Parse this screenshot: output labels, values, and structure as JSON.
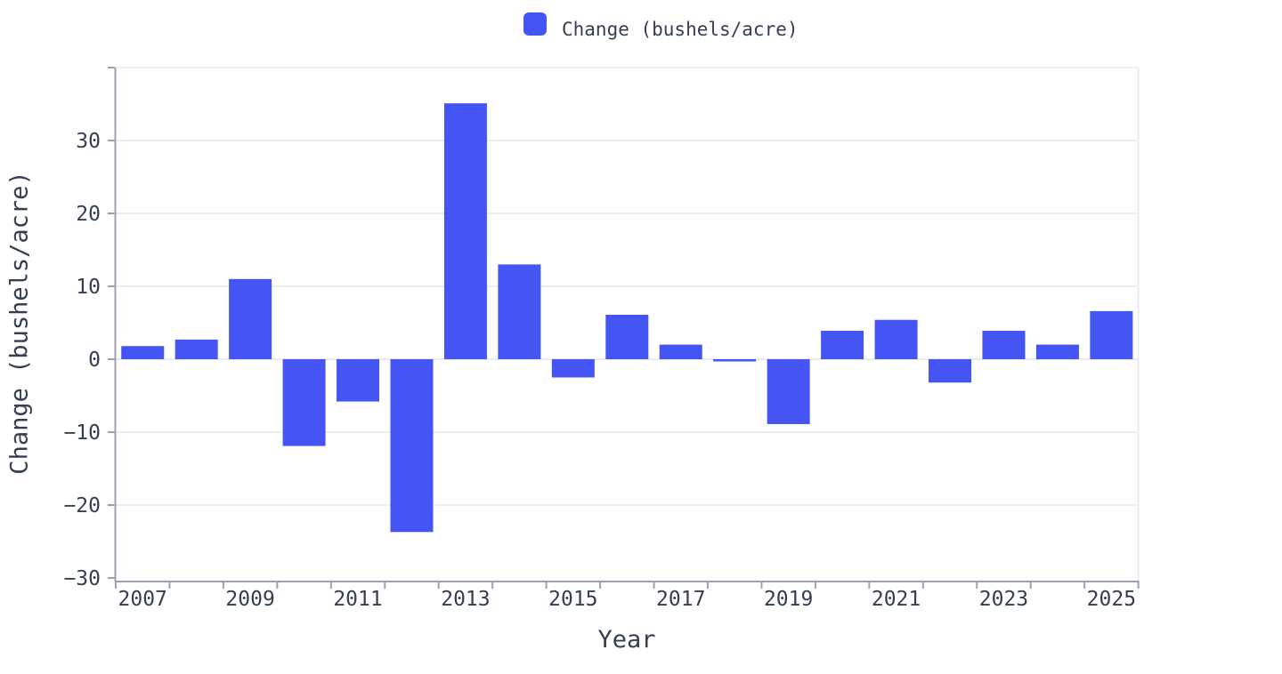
{
  "chart_data": {
    "type": "bar",
    "title": "",
    "xlabel": "Year",
    "ylabel": "Change (bushels/acre)",
    "legend_label": "Change (bushels/acre)",
    "legend_position": "top-center",
    "categories": [
      2007,
      2008,
      2009,
      2010,
      2011,
      2012,
      2013,
      2014,
      2015,
      2016,
      2017,
      2018,
      2019,
      2020,
      2021,
      2022,
      2023,
      2024,
      2025
    ],
    "values": [
      1.8,
      2.7,
      11.0,
      -11.9,
      -5.8,
      -23.7,
      35.1,
      13.0,
      -2.5,
      6.1,
      2.0,
      -0.3,
      -8.9,
      3.9,
      5.4,
      -3.2,
      3.9,
      2.0,
      6.6
    ],
    "x_tick_labels": [
      "2007",
      "2009",
      "2011",
      "2013",
      "2015",
      "2017",
      "2019",
      "2021",
      "2023",
      "2025"
    ],
    "y_tick_values": [
      30,
      20,
      10,
      0,
      -10,
      -20,
      -30
    ],
    "y_tick_labels": [
      "30",
      "20",
      "10",
      "0",
      "−10",
      "−20",
      "−30"
    ],
    "ylim": [
      -30.5,
      40.5
    ],
    "grid": true,
    "colors": {
      "bar": "#4555f3",
      "text": "#343f52",
      "axis": "#9ba2ae",
      "grid": "#e7e9ee",
      "background": "#ffffff"
    }
  }
}
